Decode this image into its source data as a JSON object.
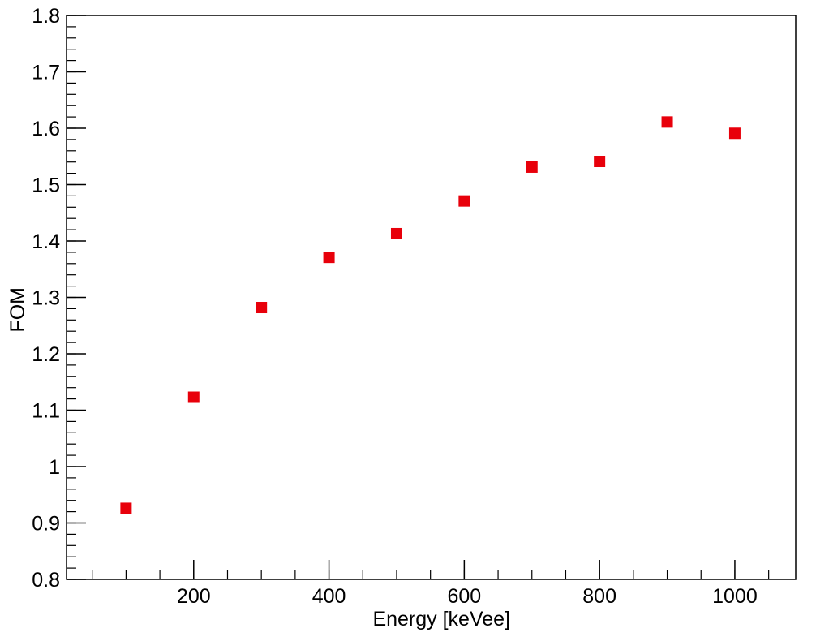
{
  "chart_data": {
    "type": "scatter",
    "title": "",
    "xlabel": "Energy [keVee]",
    "ylabel": "FOM",
    "xlim": [
      12,
      1090
    ],
    "ylim": [
      0.8,
      1.8
    ],
    "x_ticks": [
      200,
      400,
      600,
      800,
      1000
    ],
    "x_tick_labels": [
      "200",
      "400",
      "600",
      "800",
      "1000"
    ],
    "y_ticks": [
      0.8,
      0.9,
      1.0,
      1.1,
      1.2,
      1.3,
      1.4,
      1.5,
      1.6,
      1.7,
      1.8
    ],
    "y_tick_labels": [
      "0.8",
      "0.9",
      "1",
      "1.1",
      "1.2",
      "1.3",
      "1.4",
      "1.5",
      "1.6",
      "1.7",
      "1.8"
    ],
    "grid": false,
    "legend": "none",
    "series": [
      {
        "marker": "square",
        "color": "#e8000b",
        "x": [
          100,
          200,
          300,
          400,
          500,
          600,
          700,
          800,
          900,
          1000
        ],
        "y": [
          0.926,
          1.123,
          1.282,
          1.371,
          1.413,
          1.471,
          1.531,
          1.541,
          1.611,
          1.591
        ]
      }
    ]
  }
}
